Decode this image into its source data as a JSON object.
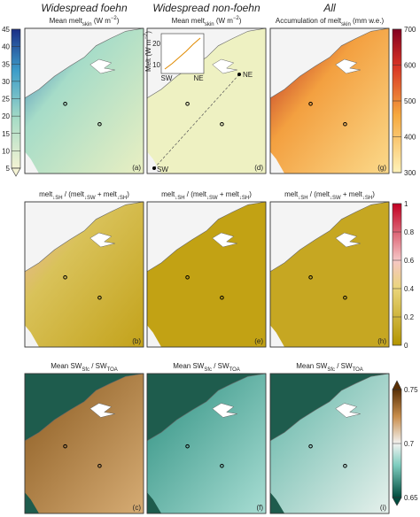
{
  "columns": [
    "Widespread foehn",
    "Widespread non-foehn",
    "All"
  ],
  "panels": [
    {
      "title": [
        {
          "text": "Mean melt"
        },
        {
          "text": "skin",
          "pos": "sub"
        },
        {
          "text": " (W m"
        },
        {
          "text": "−2",
          "pos": "sup"
        },
        {
          "text": ")"
        }
      ],
      "label": "(a)"
    },
    {
      "title": [
        {
          "text": "Mean melt"
        },
        {
          "text": "skin",
          "pos": "sub"
        },
        {
          "text": " (W m"
        },
        {
          "text": "−2",
          "pos": "sup"
        },
        {
          "text": ")"
        }
      ],
      "label": "(d)"
    },
    {
      "title": [
        {
          "text": "Accumulation of melt"
        },
        {
          "text": "skin",
          "pos": "sub"
        },
        {
          "text": " (mm w.e.)"
        }
      ],
      "label": "(g)"
    },
    {
      "title": [
        {
          "text": "melt"
        },
        {
          "text": "↓SH",
          "pos": "sub"
        },
        {
          "text": " / (melt"
        },
        {
          "text": "↓SW",
          "pos": "sub"
        },
        {
          "text": " + melt"
        },
        {
          "text": "↓SH",
          "pos": "sub"
        },
        {
          "text": ")"
        }
      ],
      "label": "(b)"
    },
    {
      "title": [
        {
          "text": "melt"
        },
        {
          "text": "↓SH",
          "pos": "sub"
        },
        {
          "text": " / (melt"
        },
        {
          "text": "↓SW",
          "pos": "sub"
        },
        {
          "text": " + melt"
        },
        {
          "text": "↓SH",
          "pos": "sub"
        },
        {
          "text": ")"
        }
      ],
      "label": "(e)"
    },
    {
      "title": [
        {
          "text": "melt"
        },
        {
          "text": "↓SH",
          "pos": "sub"
        },
        {
          "text": " / (melt"
        },
        {
          "text": "↓SW",
          "pos": "sub"
        },
        {
          "text": " + melt"
        },
        {
          "text": "↓SH",
          "pos": "sub"
        },
        {
          "text": ")"
        }
      ],
      "label": "(h)"
    },
    {
      "title": [
        {
          "text": "Mean SW"
        },
        {
          "text": "Sfc",
          "pos": "sub"
        },
        {
          "text": " / SW"
        },
        {
          "text": "TOA",
          "pos": "sub"
        }
      ],
      "label": "(c)"
    },
    {
      "title": [
        {
          "text": "Mean SW"
        },
        {
          "text": "Sfc",
          "pos": "sub"
        },
        {
          "text": " / SW"
        },
        {
          "text": "TOA",
          "pos": "sub"
        }
      ],
      "label": "(f)"
    },
    {
      "title": [
        {
          "text": "Mean SW"
        },
        {
          "text": "Sfc",
          "pos": "sub"
        },
        {
          "text": " / SW"
        },
        {
          "text": "TOA",
          "pos": "sub"
        }
      ],
      "label": "(i)"
    }
  ],
  "colorbars": [
    {
      "ticks": [
        5,
        10,
        15,
        20,
        25,
        30,
        35,
        40,
        45
      ]
    },
    {
      "ticks": [
        300,
        400,
        500,
        600,
        700
      ]
    },
    {
      "ticks": [
        0,
        0.2,
        0.4,
        0.6,
        0.8,
        1
      ]
    },
    {
      "ticks": [
        0.65,
        0.7,
        0.75
      ]
    }
  ],
  "inset": {
    "ylabel": [
      {
        "text": "Melt (W m"
      },
      {
        "text": "−2",
        "pos": "sup"
      },
      {
        "text": ")"
      }
    ],
    "yticks": [
      10,
      20
    ],
    "xlabels": [
      "SW",
      "NE"
    ]
  },
  "map_labels": [
    "NE",
    "SW"
  ]
}
